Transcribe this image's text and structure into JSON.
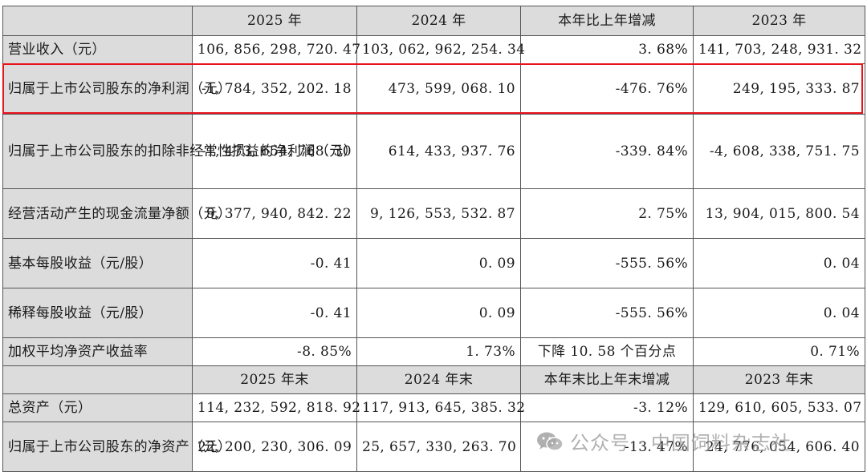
{
  "header_top": [
    "",
    "2025 年",
    "2024 年",
    "本年比上年增减",
    "2023 年"
  ],
  "rows_top": [
    {
      "label": "营业收入（元）",
      "v2025": "106, 856, 298, 720. 47",
      "v2024": "103, 062, 962, 254. 34",
      "change": "3. 68%",
      "v2023": "141, 703, 248, 931. 32"
    },
    {
      "label": "归属于上市公司股东的净利润（元）",
      "v2025": "-1, 784, 352, 202. 18",
      "v2024": "473, 599, 068. 10",
      "change": "-476. 76%",
      "v2023": "249, 195, 333. 87"
    },
    {
      "label": "归属于上市公司股东的扣除非经常性损益的净利润（元）",
      "v2025": "-1, 473, 654, 768. 30",
      "v2024": "614, 433, 937. 76",
      "change": "-339. 84%",
      "v2023": "-4, 608, 338, 751. 75"
    },
    {
      "label": "经营活动产生的现金流量净额（元）",
      "v2025": "9, 377, 940, 842. 22",
      "v2024": "9, 126, 553, 532. 87",
      "change": "2. 75%",
      "v2023": "13, 904, 015, 800. 54"
    },
    {
      "label": "基本每股收益（元/股）",
      "v2025": "-0. 41",
      "v2024": "0. 09",
      "change": "-555. 56%",
      "v2023": "0. 04"
    },
    {
      "label": "稀释每股收益（元/股）",
      "v2025": "-0. 41",
      "v2024": "0. 09",
      "change": "-555. 56%",
      "v2023": "0. 04"
    },
    {
      "label": "加权平均净资产收益率",
      "v2025": "-8. 85%",
      "v2024": "1. 73%",
      "change": "下降 10. 58 个百分点",
      "v2023": "0. 71%"
    }
  ],
  "header_bottom": [
    "",
    "2025 年末",
    "2024 年末",
    "本年末比上年末增减",
    "2023 年末"
  ],
  "rows_bottom": [
    {
      "label": "总资产（元）",
      "v2025": "114, 232, 592, 818. 92",
      "v2024": "117, 913, 645, 385. 32",
      "change": "-3. 12%",
      "v2023": "129, 610, 605, 533. 07"
    },
    {
      "label": "归属于上市公司股东的净资产（元）",
      "v2025": "22, 200, 230, 306. 09",
      "v2024": "25, 657, 330, 263. 70",
      "change": "-13. 47%",
      "v2023": "24, 776, 054, 606. 40"
    }
  ],
  "highlight_color": "#e8141c",
  "watermark": {
    "icon": "wechat-icon",
    "text": "公众号 · 中国饲料杂志社"
  }
}
